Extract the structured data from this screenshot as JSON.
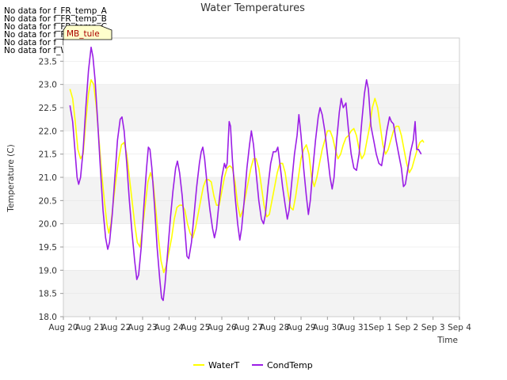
{
  "no_data_notes": [
    "No data for f_FR_temp_A",
    "No data for f_FR_temp_B",
    "No data for f_FR_temp_C",
    "No data for f_FD_Temp_1",
    "No data for f_Temp_A",
    "No data for f_WaterTemp_CTD"
  ],
  "tooltip_label": "MB_tule",
  "chart_data": {
    "type": "line",
    "title": "Water Temperatures",
    "xlabel": "Time",
    "ylabel": "Temperature (C)",
    "ylim": [
      18.0,
      24.0
    ],
    "yticks": [
      18.0,
      18.5,
      19.0,
      19.5,
      20.0,
      20.5,
      21.0,
      21.5,
      22.0,
      22.5,
      23.0,
      23.5
    ],
    "xlim": [
      0,
      15
    ],
    "xticks": [
      "Aug 20",
      "Aug 21",
      "Aug 22",
      "Aug 23",
      "Aug 24",
      "Aug 25",
      "Aug 26",
      "Aug 27",
      "Aug 28",
      "Aug 29",
      "Aug 30",
      "Aug 31",
      "Sep 1",
      "Sep 2",
      "Sep 3",
      "Sep 4"
    ],
    "grid": "horizontal bands",
    "legend_position": "bottom-center",
    "series": [
      {
        "name": "WaterT",
        "color": "#ffff00",
        "points": [
          [
            0.25,
            22.9
          ],
          [
            0.35,
            22.7
          ],
          [
            0.45,
            22.2
          ],
          [
            0.55,
            21.6
          ],
          [
            0.65,
            21.4
          ],
          [
            0.75,
            21.5
          ],
          [
            0.85,
            22.2
          ],
          [
            0.95,
            22.8
          ],
          [
            1.05,
            23.1
          ],
          [
            1.15,
            23.0
          ],
          [
            1.25,
            22.5
          ],
          [
            1.35,
            21.8
          ],
          [
            1.45,
            21.1
          ],
          [
            1.55,
            20.5
          ],
          [
            1.65,
            20.0
          ],
          [
            1.72,
            19.8
          ],
          [
            1.8,
            20.0
          ],
          [
            1.9,
            20.5
          ],
          [
            2.0,
            21.0
          ],
          [
            2.1,
            21.4
          ],
          [
            2.2,
            21.7
          ],
          [
            2.3,
            21.75
          ],
          [
            2.4,
            21.5
          ],
          [
            2.5,
            21.0
          ],
          [
            2.6,
            20.5
          ],
          [
            2.7,
            20.0
          ],
          [
            2.8,
            19.6
          ],
          [
            2.9,
            19.5
          ],
          [
            3.0,
            19.9
          ],
          [
            3.1,
            20.4
          ],
          [
            3.2,
            20.9
          ],
          [
            3.3,
            21.1
          ],
          [
            3.4,
            20.9
          ],
          [
            3.5,
            20.3
          ],
          [
            3.6,
            19.7
          ],
          [
            3.7,
            19.2
          ],
          [
            3.8,
            18.95
          ],
          [
            3.9,
            19.1
          ],
          [
            4.0,
            19.4
          ],
          [
            4.1,
            19.7
          ],
          [
            4.2,
            20.1
          ],
          [
            4.3,
            20.35
          ],
          [
            4.4,
            20.4
          ],
          [
            4.5,
            20.4
          ],
          [
            4.6,
            20.3
          ],
          [
            4.7,
            20.0
          ],
          [
            4.8,
            19.8
          ],
          [
            4.9,
            19.7
          ],
          [
            5.0,
            19.9
          ],
          [
            5.1,
            20.2
          ],
          [
            5.2,
            20.5
          ],
          [
            5.3,
            20.8
          ],
          [
            5.4,
            20.95
          ],
          [
            5.5,
            20.95
          ],
          [
            5.6,
            20.9
          ],
          [
            5.7,
            20.6
          ],
          [
            5.8,
            20.4
          ],
          [
            5.9,
            20.4
          ],
          [
            6.0,
            20.7
          ],
          [
            6.1,
            21.0
          ],
          [
            6.2,
            21.2
          ],
          [
            6.3,
            21.25
          ],
          [
            6.4,
            21.2
          ],
          [
            6.5,
            20.9
          ],
          [
            6.6,
            20.4
          ],
          [
            6.7,
            20.15
          ],
          [
            6.8,
            20.3
          ],
          [
            6.9,
            20.6
          ],
          [
            7.0,
            20.9
          ],
          [
            7.1,
            21.2
          ],
          [
            7.2,
            21.4
          ],
          [
            7.3,
            21.4
          ],
          [
            7.4,
            21.2
          ],
          [
            7.5,
            20.8
          ],
          [
            7.6,
            20.4
          ],
          [
            7.7,
            20.15
          ],
          [
            7.8,
            20.2
          ],
          [
            7.9,
            20.5
          ],
          [
            8.0,
            20.8
          ],
          [
            8.1,
            21.1
          ],
          [
            8.2,
            21.3
          ],
          [
            8.3,
            21.3
          ],
          [
            8.4,
            21.1
          ],
          [
            8.5,
            20.7
          ],
          [
            8.6,
            20.35
          ],
          [
            8.7,
            20.3
          ],
          [
            8.8,
            20.6
          ],
          [
            8.9,
            21.0
          ],
          [
            9.0,
            21.4
          ],
          [
            9.1,
            21.6
          ],
          [
            9.2,
            21.7
          ],
          [
            9.3,
            21.5
          ],
          [
            9.4,
            21.0
          ],
          [
            9.5,
            20.8
          ],
          [
            9.6,
            21.0
          ],
          [
            9.7,
            21.3
          ],
          [
            9.8,
            21.6
          ],
          [
            9.9,
            21.8
          ],
          [
            10.0,
            22.0
          ],
          [
            10.1,
            22.0
          ],
          [
            10.2,
            21.85
          ],
          [
            10.3,
            21.6
          ],
          [
            10.4,
            21.4
          ],
          [
            10.5,
            21.5
          ],
          [
            10.6,
            21.7
          ],
          [
            10.7,
            21.85
          ],
          [
            10.8,
            21.9
          ],
          [
            10.9,
            22.0
          ],
          [
            11.0,
            22.05
          ],
          [
            11.1,
            21.9
          ],
          [
            11.2,
            21.6
          ],
          [
            11.3,
            21.4
          ],
          [
            11.4,
            21.5
          ],
          [
            11.5,
            21.8
          ],
          [
            11.6,
            22.1
          ],
          [
            11.7,
            22.5
          ],
          [
            11.8,
            22.7
          ],
          [
            11.9,
            22.5
          ],
          [
            12.0,
            22.1
          ],
          [
            12.1,
            21.7
          ],
          [
            12.2,
            21.5
          ],
          [
            12.3,
            21.6
          ],
          [
            12.4,
            21.8
          ],
          [
            12.5,
            22.0
          ],
          [
            12.6,
            22.1
          ],
          [
            12.7,
            22.1
          ],
          [
            12.8,
            21.9
          ],
          [
            12.9,
            21.6
          ],
          [
            13.0,
            21.3
          ],
          [
            13.1,
            21.1
          ],
          [
            13.2,
            21.2
          ],
          [
            13.3,
            21.4
          ],
          [
            13.4,
            21.6
          ],
          [
            13.5,
            21.75
          ],
          [
            13.6,
            21.8
          ],
          [
            13.65,
            21.75
          ]
        ]
      },
      {
        "name": "CondTemp",
        "color": "#9b1ee6",
        "points": [
          [
            0.25,
            22.55
          ],
          [
            0.35,
            22.2
          ],
          [
            0.45,
            21.5
          ],
          [
            0.52,
            21.0
          ],
          [
            0.58,
            20.85
          ],
          [
            0.65,
            21.0
          ],
          [
            0.75,
            21.6
          ],
          [
            0.85,
            22.5
          ],
          [
            0.95,
            23.3
          ],
          [
            1.05,
            23.8
          ],
          [
            1.12,
            23.6
          ],
          [
            1.2,
            23.1
          ],
          [
            1.3,
            22.2
          ],
          [
            1.4,
            21.2
          ],
          [
            1.5,
            20.3
          ],
          [
            1.6,
            19.7
          ],
          [
            1.68,
            19.45
          ],
          [
            1.75,
            19.6
          ],
          [
            1.85,
            20.2
          ],
          [
            1.95,
            21.0
          ],
          [
            2.05,
            21.8
          ],
          [
            2.15,
            22.25
          ],
          [
            2.22,
            22.3
          ],
          [
            2.3,
            22.0
          ],
          [
            2.4,
            21.3
          ],
          [
            2.5,
            20.5
          ],
          [
            2.6,
            19.8
          ],
          [
            2.7,
            19.2
          ],
          [
            2.78,
            18.8
          ],
          [
            2.85,
            18.9
          ],
          [
            2.95,
            19.5
          ],
          [
            3.05,
            20.4
          ],
          [
            3.15,
            21.2
          ],
          [
            3.22,
            21.65
          ],
          [
            3.28,
            21.6
          ],
          [
            3.35,
            21.2
          ],
          [
            3.45,
            20.4
          ],
          [
            3.55,
            19.5
          ],
          [
            3.65,
            18.8
          ],
          [
            3.72,
            18.4
          ],
          [
            3.78,
            18.35
          ],
          [
            3.85,
            18.7
          ],
          [
            3.95,
            19.4
          ],
          [
            4.05,
            20.1
          ],
          [
            4.15,
            20.7
          ],
          [
            4.25,
            21.2
          ],
          [
            4.32,
            21.35
          ],
          [
            4.4,
            21.1
          ],
          [
            4.5,
            20.6
          ],
          [
            4.6,
            19.9
          ],
          [
            4.68,
            19.3
          ],
          [
            4.75,
            19.25
          ],
          [
            4.85,
            19.6
          ],
          [
            4.95,
            20.2
          ],
          [
            5.05,
            20.8
          ],
          [
            5.15,
            21.3
          ],
          [
            5.22,
            21.55
          ],
          [
            5.28,
            21.65
          ],
          [
            5.35,
            21.4
          ],
          [
            5.45,
            20.8
          ],
          [
            5.55,
            20.3
          ],
          [
            5.65,
            19.9
          ],
          [
            5.72,
            19.7
          ],
          [
            5.8,
            19.9
          ],
          [
            5.9,
            20.5
          ],
          [
            6.0,
            21.0
          ],
          [
            6.1,
            21.3
          ],
          [
            6.15,
            21.2
          ],
          [
            6.2,
            21.3
          ],
          [
            6.28,
            22.2
          ],
          [
            6.33,
            22.1
          ],
          [
            6.4,
            21.4
          ],
          [
            6.5,
            20.6
          ],
          [
            6.6,
            20.0
          ],
          [
            6.68,
            19.65
          ],
          [
            6.75,
            19.9
          ],
          [
            6.85,
            20.5
          ],
          [
            6.95,
            21.2
          ],
          [
            7.05,
            21.7
          ],
          [
            7.12,
            22.0
          ],
          [
            7.2,
            21.7
          ],
          [
            7.3,
            21.1
          ],
          [
            7.4,
            20.5
          ],
          [
            7.5,
            20.1
          ],
          [
            7.58,
            20.0
          ],
          [
            7.65,
            20.2
          ],
          [
            7.75,
            20.8
          ],
          [
            7.85,
            21.3
          ],
          [
            7.95,
            21.55
          ],
          [
            8.05,
            21.55
          ],
          [
            8.12,
            21.65
          ],
          [
            8.2,
            21.3
          ],
          [
            8.3,
            20.8
          ],
          [
            8.4,
            20.4
          ],
          [
            8.48,
            20.1
          ],
          [
            8.55,
            20.3
          ],
          [
            8.65,
            20.9
          ],
          [
            8.75,
            21.5
          ],
          [
            8.85,
            21.9
          ],
          [
            8.92,
            22.35
          ],
          [
            9.0,
            21.9
          ],
          [
            9.1,
            21.2
          ],
          [
            9.2,
            20.6
          ],
          [
            9.28,
            20.2
          ],
          [
            9.35,
            20.5
          ],
          [
            9.45,
            21.2
          ],
          [
            9.55,
            21.8
          ],
          [
            9.65,
            22.3
          ],
          [
            9.72,
            22.5
          ],
          [
            9.8,
            22.35
          ],
          [
            9.9,
            22.0
          ],
          [
            10.0,
            21.5
          ],
          [
            10.1,
            21.0
          ],
          [
            10.18,
            20.75
          ],
          [
            10.25,
            21.0
          ],
          [
            10.35,
            21.8
          ],
          [
            10.45,
            22.4
          ],
          [
            10.52,
            22.7
          ],
          [
            10.6,
            22.5
          ],
          [
            10.7,
            22.6
          ],
          [
            10.8,
            22.0
          ],
          [
            10.9,
            21.5
          ],
          [
            11.0,
            21.2
          ],
          [
            11.1,
            21.15
          ],
          [
            11.2,
            21.5
          ],
          [
            11.3,
            22.2
          ],
          [
            11.4,
            22.8
          ],
          [
            11.48,
            23.1
          ],
          [
            11.55,
            22.9
          ],
          [
            11.65,
            22.1
          ],
          [
            11.75,
            21.8
          ],
          [
            11.85,
            21.5
          ],
          [
            11.95,
            21.3
          ],
          [
            12.05,
            21.25
          ],
          [
            12.15,
            21.6
          ],
          [
            12.25,
            22.0
          ],
          [
            12.35,
            22.3
          ],
          [
            12.42,
            22.2
          ],
          [
            12.5,
            22.15
          ],
          [
            12.6,
            21.8
          ],
          [
            12.7,
            21.5
          ],
          [
            12.8,
            21.2
          ],
          [
            12.88,
            20.8
          ],
          [
            12.95,
            20.85
          ],
          [
            13.05,
            21.2
          ],
          [
            13.15,
            21.55
          ],
          [
            13.25,
            21.8
          ],
          [
            13.32,
            22.2
          ],
          [
            13.38,
            21.6
          ],
          [
            13.45,
            21.6
          ],
          [
            13.55,
            21.5
          ]
        ]
      }
    ]
  }
}
